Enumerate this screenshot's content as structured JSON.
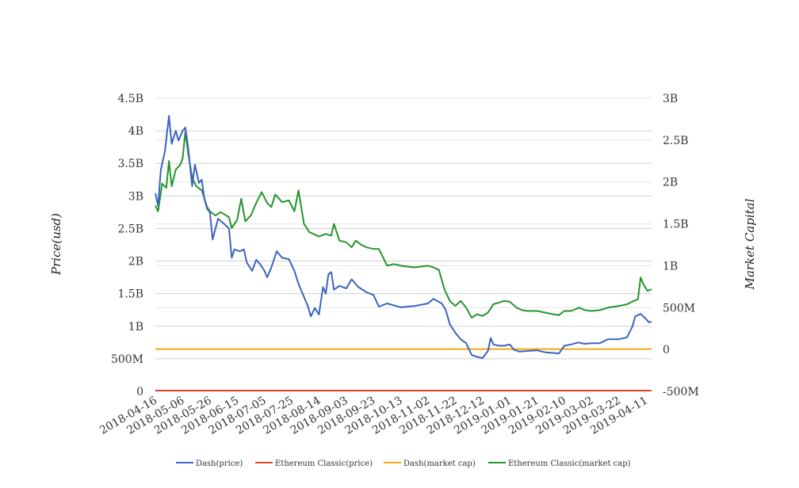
{
  "chart_data": {
    "type": "line",
    "title": "",
    "y_left_label": "Price(usd)",
    "y_right_label": "Market Capital",
    "y_left_ticks": [
      "0",
      "500M",
      "1B",
      "1.5B",
      "2B",
      "2.5B",
      "3B",
      "3.5B",
      "4B",
      "4.5B"
    ],
    "y_left_range": [
      0,
      4500000000
    ],
    "y_right_ticks": [
      "-500M",
      "0",
      "500M",
      "1B",
      "1.5B",
      "2B",
      "2.5B",
      "3B"
    ],
    "y_right_range": [
      -500000000,
      3000000000
    ],
    "x_ticks": [
      "2018-04-16",
      "2018-05-06",
      "2018-05-26",
      "2018-06-15",
      "2018-07-05",
      "2018-07-25",
      "2018-08-14",
      "2018-09-03",
      "2018-09-23",
      "2018-10-13",
      "2018-11-02",
      "2018-11-22",
      "2018-12-12",
      "2019-01-01",
      "2019-01-21",
      "2019-02-10",
      "2019-03-02",
      "2019-03-22",
      "2019-04-11"
    ],
    "x_range": [
      "2018-04-16",
      "2019-04-15"
    ],
    "grid": true,
    "legend_position": "bottom",
    "series": [
      {
        "name": "Dash(price)",
        "color": "#3b64c0",
        "axis": "left",
        "points": [
          [
            "2018-04-16",
            3040000000
          ],
          [
            "2018-04-18",
            2850000000
          ],
          [
            "2018-04-20",
            3400000000
          ],
          [
            "2018-04-23",
            3680000000
          ],
          [
            "2018-04-26",
            4230000000
          ],
          [
            "2018-04-28",
            3800000000
          ],
          [
            "2018-05-01",
            4000000000
          ],
          [
            "2018-05-03",
            3850000000
          ],
          [
            "2018-05-06",
            4000000000
          ],
          [
            "2018-05-08",
            4050000000
          ],
          [
            "2018-05-10",
            3750000000
          ],
          [
            "2018-05-13",
            3150000000
          ],
          [
            "2018-05-15",
            3480000000
          ],
          [
            "2018-05-18",
            3200000000
          ],
          [
            "2018-05-20",
            3250000000
          ],
          [
            "2018-05-22",
            2950000000
          ],
          [
            "2018-05-24",
            2800000000
          ],
          [
            "2018-05-26",
            2750000000
          ],
          [
            "2018-05-28",
            2330000000
          ],
          [
            "2018-06-01",
            2650000000
          ],
          [
            "2018-06-05",
            2580000000
          ],
          [
            "2018-06-09",
            2500000000
          ],
          [
            "2018-06-11",
            2050000000
          ],
          [
            "2018-06-13",
            2180000000
          ],
          [
            "2018-06-17",
            2150000000
          ],
          [
            "2018-06-20",
            2180000000
          ],
          [
            "2018-06-22",
            1980000000
          ],
          [
            "2018-06-26",
            1850000000
          ],
          [
            "2018-06-29",
            2020000000
          ],
          [
            "2018-07-02",
            1950000000
          ],
          [
            "2018-07-05",
            1850000000
          ],
          [
            "2018-07-07",
            1750000000
          ],
          [
            "2018-07-10",
            1900000000
          ],
          [
            "2018-07-14",
            2150000000
          ],
          [
            "2018-07-18",
            2050000000
          ],
          [
            "2018-07-23",
            2030000000
          ],
          [
            "2018-07-27",
            1850000000
          ],
          [
            "2018-07-30",
            1650000000
          ],
          [
            "2018-08-03",
            1450000000
          ],
          [
            "2018-08-06",
            1300000000
          ],
          [
            "2018-08-08",
            1150000000
          ],
          [
            "2018-08-11",
            1280000000
          ],
          [
            "2018-08-14",
            1180000000
          ],
          [
            "2018-08-17",
            1600000000
          ],
          [
            "2018-08-19",
            1500000000
          ],
          [
            "2018-08-21",
            1800000000
          ],
          [
            "2018-08-23",
            1830000000
          ],
          [
            "2018-08-25",
            1560000000
          ],
          [
            "2018-08-29",
            1620000000
          ],
          [
            "2018-09-03",
            1580000000
          ],
          [
            "2018-09-07",
            1720000000
          ],
          [
            "2018-09-12",
            1600000000
          ],
          [
            "2018-09-18",
            1520000000
          ],
          [
            "2018-09-23",
            1480000000
          ],
          [
            "2018-09-27",
            1300000000
          ],
          [
            "2018-10-03",
            1350000000
          ],
          [
            "2018-10-13",
            1290000000
          ],
          [
            "2018-10-23",
            1310000000
          ],
          [
            "2018-11-02",
            1350000000
          ],
          [
            "2018-11-06",
            1420000000
          ],
          [
            "2018-11-12",
            1350000000
          ],
          [
            "2018-11-15",
            1250000000
          ],
          [
            "2018-11-18",
            1030000000
          ],
          [
            "2018-11-22",
            900000000
          ],
          [
            "2018-11-26",
            800000000
          ],
          [
            "2018-11-30",
            740000000
          ],
          [
            "2018-12-04",
            560000000
          ],
          [
            "2018-12-08",
            530000000
          ],
          [
            "2018-12-12",
            510000000
          ],
          [
            "2018-12-16",
            620000000
          ],
          [
            "2018-12-18",
            820000000
          ],
          [
            "2018-12-20",
            720000000
          ],
          [
            "2018-12-24",
            700000000
          ],
          [
            "2018-12-28",
            700000000
          ],
          [
            "2019-01-01",
            720000000
          ],
          [
            "2019-01-04",
            640000000
          ],
          [
            "2019-01-08",
            610000000
          ],
          [
            "2019-01-14",
            620000000
          ],
          [
            "2019-01-21",
            630000000
          ],
          [
            "2019-01-27",
            600000000
          ],
          [
            "2019-02-02",
            590000000
          ],
          [
            "2019-02-06",
            580000000
          ],
          [
            "2019-02-10",
            700000000
          ],
          [
            "2019-02-15",
            720000000
          ],
          [
            "2019-02-20",
            750000000
          ],
          [
            "2019-02-25",
            730000000
          ],
          [
            "2019-03-02",
            740000000
          ],
          [
            "2019-03-08",
            740000000
          ],
          [
            "2019-03-14",
            800000000
          ],
          [
            "2019-03-22",
            800000000
          ],
          [
            "2019-03-28",
            830000000
          ],
          [
            "2019-04-01",
            1000000000
          ],
          [
            "2019-04-03",
            1150000000
          ],
          [
            "2019-04-07",
            1190000000
          ],
          [
            "2019-04-10",
            1130000000
          ],
          [
            "2019-04-13",
            1060000000
          ],
          [
            "2019-04-15",
            1070000000
          ]
        ]
      },
      {
        "name": "Ethereum Classic(price)",
        "color": "#d9472b",
        "axis": "left",
        "points": [
          [
            "2018-04-16",
            12000000
          ],
          [
            "2019-04-15",
            12000000
          ]
        ]
      },
      {
        "name": "Dash(market cap)",
        "color": "#f2a91c",
        "axis": "right",
        "points": [
          [
            "2018-04-16",
            5000000
          ],
          [
            "2019-04-15",
            5000000
          ]
        ]
      },
      {
        "name": "Ethereum Classic(market cap)",
        "color": "#23952b",
        "axis": "right",
        "points": [
          [
            "2018-04-16",
            1720000000
          ],
          [
            "2018-04-18",
            1650000000
          ],
          [
            "2018-04-21",
            1980000000
          ],
          [
            "2018-04-24",
            1930000000
          ],
          [
            "2018-04-26",
            2250000000
          ],
          [
            "2018-04-28",
            1950000000
          ],
          [
            "2018-05-01",
            2150000000
          ],
          [
            "2018-05-04",
            2200000000
          ],
          [
            "2018-05-06",
            2280000000
          ],
          [
            "2018-05-08",
            2600000000
          ],
          [
            "2018-05-10",
            2350000000
          ],
          [
            "2018-05-13",
            2050000000
          ],
          [
            "2018-05-16",
            1950000000
          ],
          [
            "2018-05-20",
            1900000000
          ],
          [
            "2018-05-24",
            1700000000
          ],
          [
            "2018-05-26",
            1650000000
          ],
          [
            "2018-05-30",
            1600000000
          ],
          [
            "2018-06-03",
            1640000000
          ],
          [
            "2018-06-09",
            1580000000
          ],
          [
            "2018-06-11",
            1450000000
          ],
          [
            "2018-06-15",
            1550000000
          ],
          [
            "2018-06-18",
            1800000000
          ],
          [
            "2018-06-21",
            1530000000
          ],
          [
            "2018-06-25",
            1600000000
          ],
          [
            "2018-06-29",
            1750000000
          ],
          [
            "2018-07-03",
            1880000000
          ],
          [
            "2018-07-07",
            1750000000
          ],
          [
            "2018-07-10",
            1700000000
          ],
          [
            "2018-07-13",
            1850000000
          ],
          [
            "2018-07-18",
            1760000000
          ],
          [
            "2018-07-23",
            1780000000
          ],
          [
            "2018-07-27",
            1650000000
          ],
          [
            "2018-07-30",
            1900000000
          ],
          [
            "2018-08-03",
            1500000000
          ],
          [
            "2018-08-07",
            1400000000
          ],
          [
            "2018-08-14",
            1350000000
          ],
          [
            "2018-08-19",
            1380000000
          ],
          [
            "2018-08-23",
            1360000000
          ],
          [
            "2018-08-25",
            1500000000
          ],
          [
            "2018-08-29",
            1300000000
          ],
          [
            "2018-09-03",
            1280000000
          ],
          [
            "2018-09-07",
            1220000000
          ],
          [
            "2018-09-10",
            1300000000
          ],
          [
            "2018-09-14",
            1250000000
          ],
          [
            "2018-09-18",
            1220000000
          ],
          [
            "2018-09-23",
            1200000000
          ],
          [
            "2018-09-27",
            1200000000
          ],
          [
            "2018-10-03",
            1000000000
          ],
          [
            "2018-10-08",
            1020000000
          ],
          [
            "2018-10-13",
            1000000000
          ],
          [
            "2018-10-23",
            980000000
          ],
          [
            "2018-11-02",
            1000000000
          ],
          [
            "2018-11-06",
            980000000
          ],
          [
            "2018-11-10",
            950000000
          ],
          [
            "2018-11-14",
            720000000
          ],
          [
            "2018-11-18",
            580000000
          ],
          [
            "2018-11-22",
            520000000
          ],
          [
            "2018-11-26",
            580000000
          ],
          [
            "2018-11-30",
            500000000
          ],
          [
            "2018-12-04",
            380000000
          ],
          [
            "2018-12-08",
            420000000
          ],
          [
            "2018-12-12",
            400000000
          ],
          [
            "2018-12-16",
            440000000
          ],
          [
            "2018-12-20",
            540000000
          ],
          [
            "2018-12-24",
            560000000
          ],
          [
            "2018-12-28",
            580000000
          ],
          [
            "2019-01-01",
            570000000
          ],
          [
            "2019-01-06",
            500000000
          ],
          [
            "2019-01-10",
            470000000
          ],
          [
            "2019-01-14",
            460000000
          ],
          [
            "2019-01-21",
            460000000
          ],
          [
            "2019-01-27",
            440000000
          ],
          [
            "2019-02-02",
            420000000
          ],
          [
            "2019-02-06",
            410000000
          ],
          [
            "2019-02-10",
            460000000
          ],
          [
            "2019-02-15",
            460000000
          ],
          [
            "2019-02-21",
            500000000
          ],
          [
            "2019-02-25",
            470000000
          ],
          [
            "2019-03-02",
            460000000
          ],
          [
            "2019-03-08",
            470000000
          ],
          [
            "2019-03-14",
            500000000
          ],
          [
            "2019-03-22",
            520000000
          ],
          [
            "2019-03-28",
            540000000
          ],
          [
            "2019-04-02",
            580000000
          ],
          [
            "2019-04-05",
            600000000
          ],
          [
            "2019-04-07",
            860000000
          ],
          [
            "2019-04-09",
            780000000
          ],
          [
            "2019-04-12",
            700000000
          ],
          [
            "2019-04-15",
            720000000
          ]
        ]
      }
    ]
  }
}
